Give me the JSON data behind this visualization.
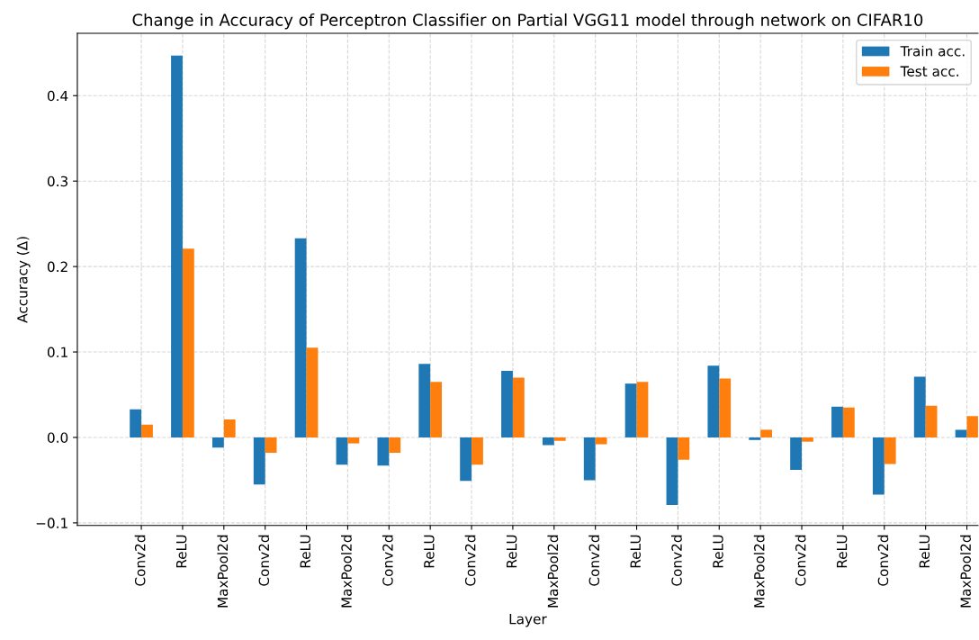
{
  "chart_data": {
    "type": "bar",
    "title": "Change in Accuracy of Perceptron Classifier on Partial VGG11 model through network on CIFAR10",
    "xlabel": "Layer",
    "ylabel": "Accuracy (Δ)",
    "categories": [
      "Conv2d",
      "ReLU",
      "MaxPool2d",
      "Conv2d",
      "ReLU",
      "MaxPool2d",
      "Conv2d",
      "ReLU",
      "Conv2d",
      "ReLU",
      "MaxPool2d",
      "Conv2d",
      "ReLU",
      "Conv2d",
      "ReLU",
      "MaxPool2d",
      "Conv2d",
      "ReLU",
      "Conv2d",
      "ReLU",
      "MaxPool2d"
    ],
    "series": [
      {
        "name": "Train acc.",
        "color": "#1f77b4",
        "values": [
          0.033,
          0.447,
          -0.012,
          -0.055,
          0.233,
          -0.032,
          -0.033,
          0.086,
          -0.051,
          0.078,
          -0.009,
          -0.05,
          0.063,
          -0.079,
          0.084,
          -0.003,
          -0.038,
          0.036,
          -0.067,
          0.071,
          0.009
        ]
      },
      {
        "name": "Test acc.",
        "color": "#ff7f0e",
        "values": [
          0.015,
          0.221,
          0.021,
          -0.018,
          0.105,
          -0.007,
          -0.018,
          0.065,
          -0.032,
          0.07,
          -0.004,
          -0.008,
          0.065,
          -0.026,
          0.069,
          0.009,
          -0.005,
          0.035,
          -0.031,
          0.037,
          0.025
        ]
      }
    ],
    "ylim": [
      -0.103,
      0.473
    ],
    "yticks": [
      {
        "value": -0.1,
        "label": "−0.1"
      },
      {
        "value": 0,
        "label": "0.0"
      },
      {
        "value": 0.1,
        "label": "0.1"
      },
      {
        "value": 0.2,
        "label": "0.2"
      },
      {
        "value": 0.3,
        "label": "0.3"
      },
      {
        "value": 0.4,
        "label": "0.4"
      }
    ],
    "grid": true,
    "legend": "top right"
  }
}
